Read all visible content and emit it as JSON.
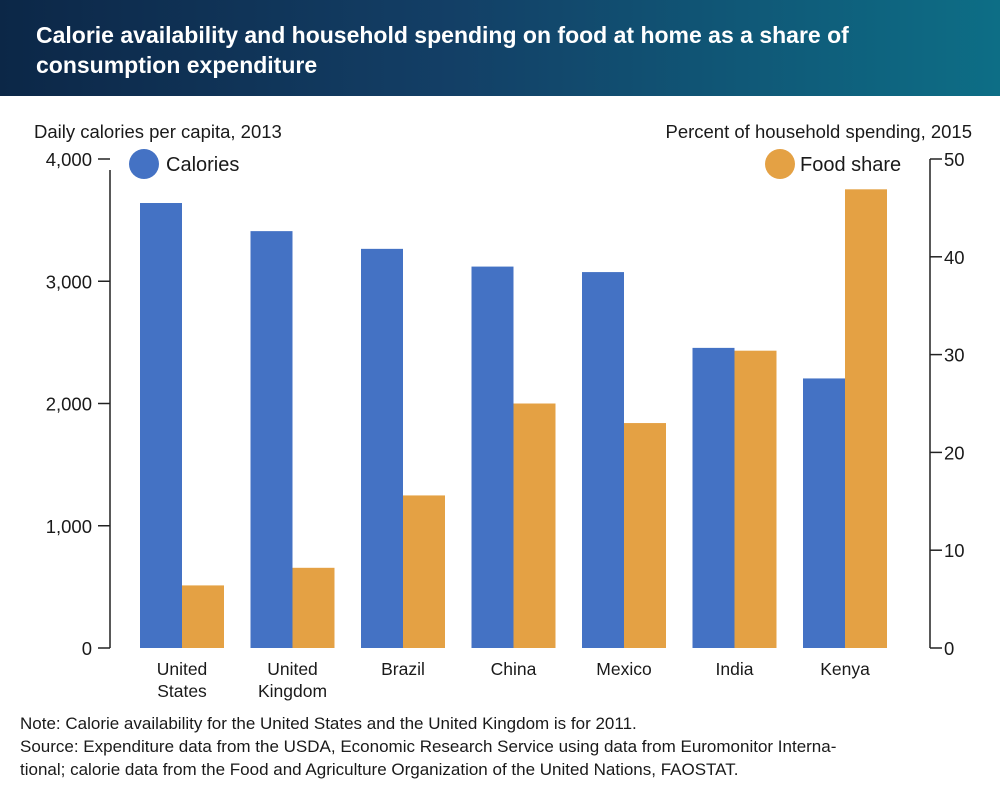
{
  "header": {
    "title": "Calorie availability and household spending on food at home as a share of consumption expenditure"
  },
  "chart_data": {
    "type": "bar",
    "title": "Calorie availability and household spending on food at home as a share of consumption expenditure",
    "categories": [
      [
        "United",
        "States"
      ],
      [
        "United",
        "Kingdom"
      ],
      [
        "Brazil"
      ],
      [
        "China"
      ],
      [
        "Mexico"
      ],
      [
        "India"
      ],
      [
        "Kenya"
      ]
    ],
    "series": [
      {
        "name": "Calories",
        "axis": "left",
        "color": "#4472c4",
        "values": [
          3640,
          3410,
          3265,
          3120,
          3075,
          2455,
          2205
        ]
      },
      {
        "name": "Food share",
        "axis": "right",
        "color": "#e4a144",
        "values": [
          6.4,
          8.2,
          15.6,
          25.0,
          23.0,
          30.4,
          46.9
        ]
      }
    ],
    "left_axis": {
      "label": "Daily calories per capita, 2013",
      "ylim": [
        0,
        4000
      ],
      "ticks": [
        "0",
        "1,000",
        "2,000",
        "3,000",
        "4,000"
      ]
    },
    "right_axis": {
      "label": "Percent of household spending, 2015",
      "ylim": [
        0,
        50
      ],
      "ticks": [
        "0",
        "10",
        "20",
        "30",
        "40",
        "50"
      ]
    },
    "legend": {
      "left_label": "Calories",
      "right_label": "Food share"
    },
    "grid": false
  },
  "notes": {
    "note": "Note: Calorie availability for the United States and the United Kingdom is for 2011.",
    "source_line1": "Source: Expenditure data from the USDA, Economic Research Service using data from Euromonitor Interna-",
    "source_line2": "tional; calorie data from the Food and Agriculture Organization of the United Nations, FAOSTAT."
  }
}
